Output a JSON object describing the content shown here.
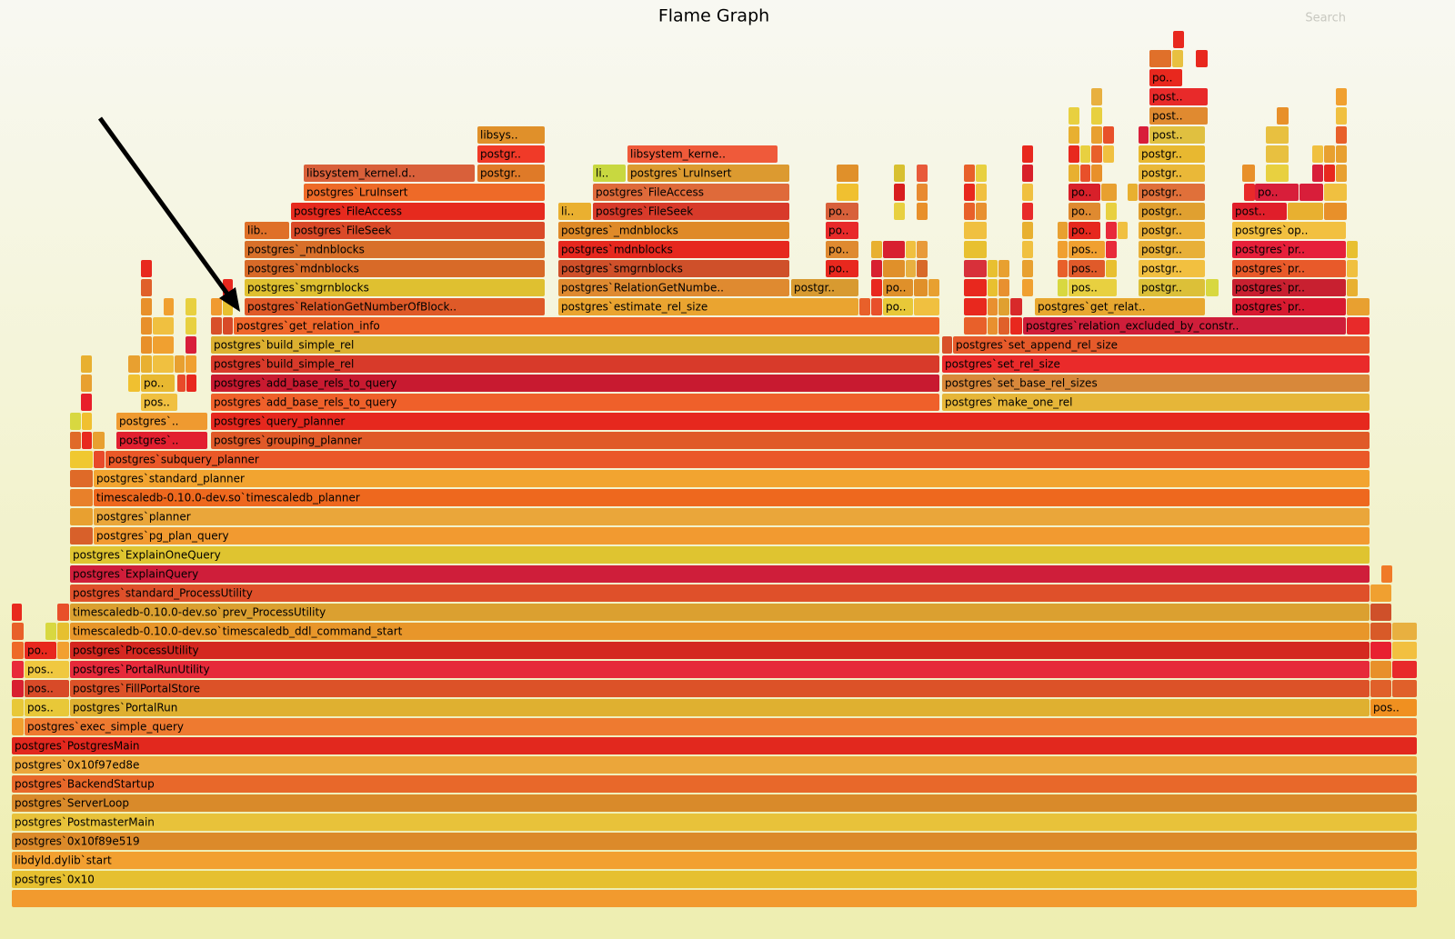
{
  "title": "Flame Graph",
  "search": "Search",
  "frames": [
    "postgres`0x10",
    "libdyld.dylib`start",
    "postgres`0x10f89e519",
    "postgres`PostmasterMain",
    "postgres`ServerLoop",
    "postgres`BackendStartup",
    "postgres`0x10f97ed8e",
    "postgres`PostgresMain",
    "postgres`exec_simple_query",
    "pos..",
    "postgres`PortalRun",
    "pos..",
    "pos..",
    "postgres`FillPortalStore",
    "pos..",
    "postgres`PortalRunUtility",
    "po..",
    "postgres`ProcessUtility",
    "timescaledb-0.10.0-dev.so`timescaledb_ddl_command_start",
    "timescaledb-0.10.0-dev.so`prev_ProcessUtility",
    "postgres`standard_ProcessUtility",
    "postgres`ExplainQuery",
    "postgres`ExplainOneQuery",
    "postgres`pg_plan_query",
    "postgres`planner",
    "timescaledb-0.10.0-dev.so`timescaledb_planner",
    "postgres`standard_planner",
    "postgres`subquery_planner",
    "postgres`..",
    "postgres`grouping_planner",
    "postgres`..",
    "postgres`query_planner",
    "pos..",
    "postgres`add_base_rels_to_query",
    "postgres`make_one_rel",
    "po..",
    "postgres`add_base_rels_to_query",
    "postgres`set_base_rel_sizes",
    "postgres`build_simple_rel",
    "postgres`set_rel_size",
    "postgres`build_simple_rel",
    "postgres`set_append_rel_size",
    "postgres`get_relation_info",
    "postgres`relation_excluded_by_constr..",
    "postgres`RelationGetNumberOfBlock..",
    "postgres`estimate_rel_size",
    "po..",
    "postgres`get_relat..",
    "postgres`pr..",
    "postgres`smgrnblocks",
    "postgres`RelationGetNumbe..",
    "postgr..",
    "po..",
    "pos..",
    "postgr..",
    "postgres`pr..",
    "postgres`mdnblocks",
    "postgres`smgrnblocks",
    "po..",
    "pos..",
    "postgr..",
    "postgres`pr..",
    "postgres`_mdnblocks",
    "postgres`mdnblocks",
    "po..",
    "pos..",
    "postgr..",
    "postgres`pr..",
    "lib..",
    "postgres`FileSeek",
    "postgres`_mdnblocks",
    "po..",
    "po..",
    "postgr..",
    "postgres`op..",
    "postgres`FileAccess",
    "li..",
    "postgres`FileSeek",
    "po..",
    "po..",
    "postgr..",
    "post..",
    "postgres`LruInsert",
    "postgres`FileAccess",
    "po..",
    "postgr..",
    "po..",
    "libsystem_kernel.d..",
    "postgr..",
    "li..",
    "postgres`LruInsert",
    "postgr..",
    "postgr..",
    "libsystem_kerne..",
    "postgr..",
    "libsys..",
    "post..",
    "post..",
    "post..",
    "po.."
  ]
}
